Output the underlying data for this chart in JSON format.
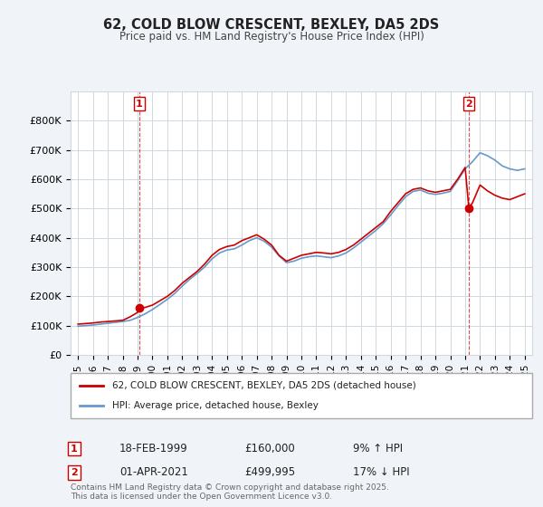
{
  "title": "62, COLD BLOW CRESCENT, BEXLEY, DA5 2DS",
  "subtitle": "Price paid vs. HM Land Registry's House Price Index (HPI)",
  "ylabel": "",
  "background_color": "#f0f4f8",
  "plot_bg_color": "#ffffff",
  "grid_color": "#d0d8e0",
  "legend_label_red": "62, COLD BLOW CRESCENT, BEXLEY, DA5 2DS (detached house)",
  "legend_label_blue": "HPI: Average price, detached house, Bexley",
  "annotation1_label": "1",
  "annotation1_date": "18-FEB-1999",
  "annotation1_price": "£160,000",
  "annotation1_hpi": "9% ↑ HPI",
  "annotation2_label": "2",
  "annotation2_date": "01-APR-2021",
  "annotation2_price": "£499,995",
  "annotation2_hpi": "17% ↓ HPI",
  "footer": "Contains HM Land Registry data © Crown copyright and database right 2025.\nThis data is licensed under the Open Government Licence v3.0.",
  "ylim": [
    0,
    900000
  ],
  "yticks": [
    0,
    100000,
    200000,
    300000,
    400000,
    500000,
    600000,
    700000,
    800000
  ],
  "ytick_labels": [
    "£0",
    "£100K",
    "£200K",
    "£300K",
    "£400K",
    "£500K",
    "£600K",
    "£700K",
    "£800K"
  ],
  "red_color": "#cc0000",
  "blue_color": "#6699cc",
  "marker1_x": 1999.12,
  "marker1_y": 160000,
  "marker2_x": 2021.25,
  "marker2_y": 499995,
  "red_x": [
    1995.0,
    1995.5,
    1996.0,
    1996.5,
    1997.0,
    1997.5,
    1998.0,
    1998.5,
    1999.0,
    1999.12,
    1999.5,
    2000.0,
    2000.5,
    2001.0,
    2001.5,
    2002.0,
    2002.5,
    2003.0,
    2003.5,
    2004.0,
    2004.5,
    2005.0,
    2005.5,
    2006.0,
    2006.5,
    2007.0,
    2007.5,
    2008.0,
    2008.5,
    2009.0,
    2009.5,
    2010.0,
    2010.5,
    2011.0,
    2011.5,
    2012.0,
    2012.5,
    2013.0,
    2013.5,
    2014.0,
    2014.5,
    2015.0,
    2015.5,
    2016.0,
    2016.5,
    2017.0,
    2017.5,
    2018.0,
    2018.5,
    2019.0,
    2019.5,
    2020.0,
    2020.5,
    2021.0,
    2021.25,
    2021.5,
    2022.0,
    2022.5,
    2023.0,
    2023.5,
    2024.0,
    2024.5,
    2025.0
  ],
  "red_y": [
    105000,
    107000,
    109000,
    112000,
    114000,
    116000,
    118000,
    130000,
    145000,
    160000,
    162000,
    170000,
    185000,
    200000,
    220000,
    245000,
    265000,
    285000,
    310000,
    340000,
    360000,
    370000,
    375000,
    390000,
    400000,
    410000,
    395000,
    375000,
    340000,
    320000,
    330000,
    340000,
    345000,
    350000,
    348000,
    345000,
    350000,
    360000,
    375000,
    395000,
    415000,
    435000,
    455000,
    490000,
    520000,
    550000,
    565000,
    570000,
    560000,
    555000,
    560000,
    565000,
    600000,
    640000,
    499995,
    520000,
    580000,
    560000,
    545000,
    535000,
    530000,
    540000,
    550000
  ],
  "blue_x": [
    1995.0,
    1995.5,
    1996.0,
    1996.5,
    1997.0,
    1997.5,
    1998.0,
    1998.5,
    1999.0,
    1999.5,
    2000.0,
    2000.5,
    2001.0,
    2001.5,
    2002.0,
    2002.5,
    2003.0,
    2003.5,
    2004.0,
    2004.5,
    2005.0,
    2005.5,
    2006.0,
    2006.5,
    2007.0,
    2007.5,
    2008.0,
    2008.5,
    2009.0,
    2009.5,
    2010.0,
    2010.5,
    2011.0,
    2011.5,
    2012.0,
    2012.5,
    2013.0,
    2013.5,
    2014.0,
    2014.5,
    2015.0,
    2015.5,
    2016.0,
    2016.5,
    2017.0,
    2017.5,
    2018.0,
    2018.5,
    2019.0,
    2019.5,
    2020.0,
    2020.5,
    2021.0,
    2021.5,
    2022.0,
    2022.5,
    2023.0,
    2023.5,
    2024.0,
    2024.5,
    2025.0
  ],
  "blue_y": [
    98000,
    100000,
    102000,
    105000,
    108000,
    111000,
    114000,
    118000,
    128000,
    140000,
    155000,
    172000,
    190000,
    210000,
    235000,
    258000,
    278000,
    300000,
    328000,
    348000,
    358000,
    362000,
    375000,
    390000,
    400000,
    388000,
    368000,
    338000,
    315000,
    320000,
    330000,
    335000,
    338000,
    335000,
    332000,
    338000,
    348000,
    365000,
    385000,
    405000,
    425000,
    448000,
    478000,
    510000,
    540000,
    558000,
    563000,
    552000,
    548000,
    552000,
    558000,
    595000,
    635000,
    660000,
    690000,
    680000,
    665000,
    645000,
    635000,
    630000,
    635000
  ],
  "xlim": [
    1994.5,
    2025.5
  ],
  "xticks": [
    1995,
    1996,
    1997,
    1998,
    1999,
    2000,
    2001,
    2002,
    2003,
    2004,
    2005,
    2006,
    2007,
    2008,
    2009,
    2010,
    2011,
    2012,
    2013,
    2014,
    2015,
    2016,
    2017,
    2018,
    2019,
    2020,
    2021,
    2022,
    2023,
    2024,
    2025
  ]
}
